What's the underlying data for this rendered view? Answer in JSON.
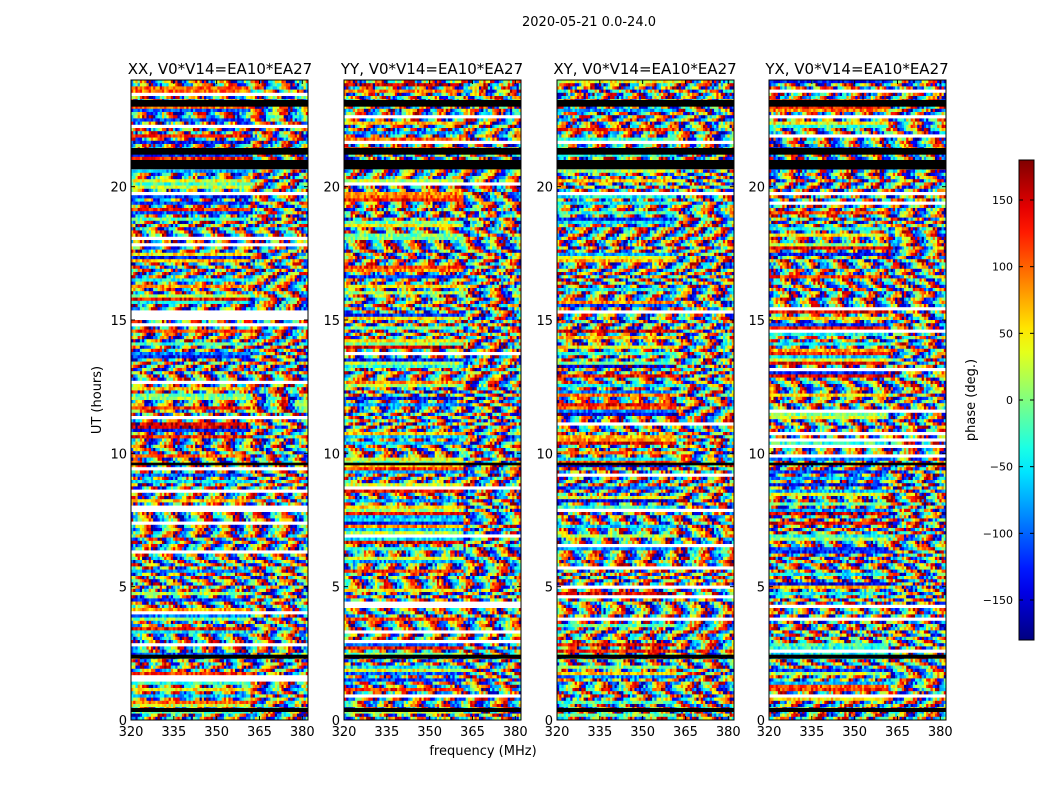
{
  "suptitle": "2020-05-21 0.0-24.0",
  "chart_data": {
    "type": "heatmap",
    "x_label": "frequency (MHz)",
    "y_label": "UT (hours)",
    "colorbar_label": "phase (deg.)",
    "colormap": "jet",
    "x_range": [
      320,
      382
    ],
    "y_range": [
      0,
      24
    ],
    "color_range": [
      -180,
      180
    ],
    "x_ticks": [
      "320",
      "335",
      "350",
      "365",
      "380"
    ],
    "x_tick_values": [
      320,
      335,
      350,
      365,
      380
    ],
    "y_ticks": [
      "0",
      "5",
      "10",
      "15",
      "20"
    ],
    "y_tick_values": [
      0,
      5,
      10,
      15,
      20
    ],
    "colorbar_ticks": [
      "150",
      "100",
      "50",
      "0",
      "−50",
      "−100",
      "−150"
    ],
    "colorbar_tick_values": [
      150,
      100,
      50,
      0,
      -50,
      -100,
      -150
    ],
    "panels": [
      {
        "title": "XX, V0*V14=EA10*EA27",
        "seed": 11
      },
      {
        "title": "YY, V0*V14=EA10*EA27",
        "seed": 23
      },
      {
        "title": "XY, V0*V14=EA10*EA27",
        "seed": 37
      },
      {
        "title": "YX, V0*V14=EA10*EA27",
        "seed": 53
      }
    ],
    "flagged_hours": [
      [
        20.65,
        21.0
      ],
      [
        21.2,
        21.45
      ],
      [
        23.0,
        23.25
      ],
      [
        0.3,
        0.45
      ],
      [
        2.3,
        2.45
      ],
      [
        9.55,
        9.65
      ]
    ],
    "grid": false,
    "legend": "colorbar-right"
  }
}
